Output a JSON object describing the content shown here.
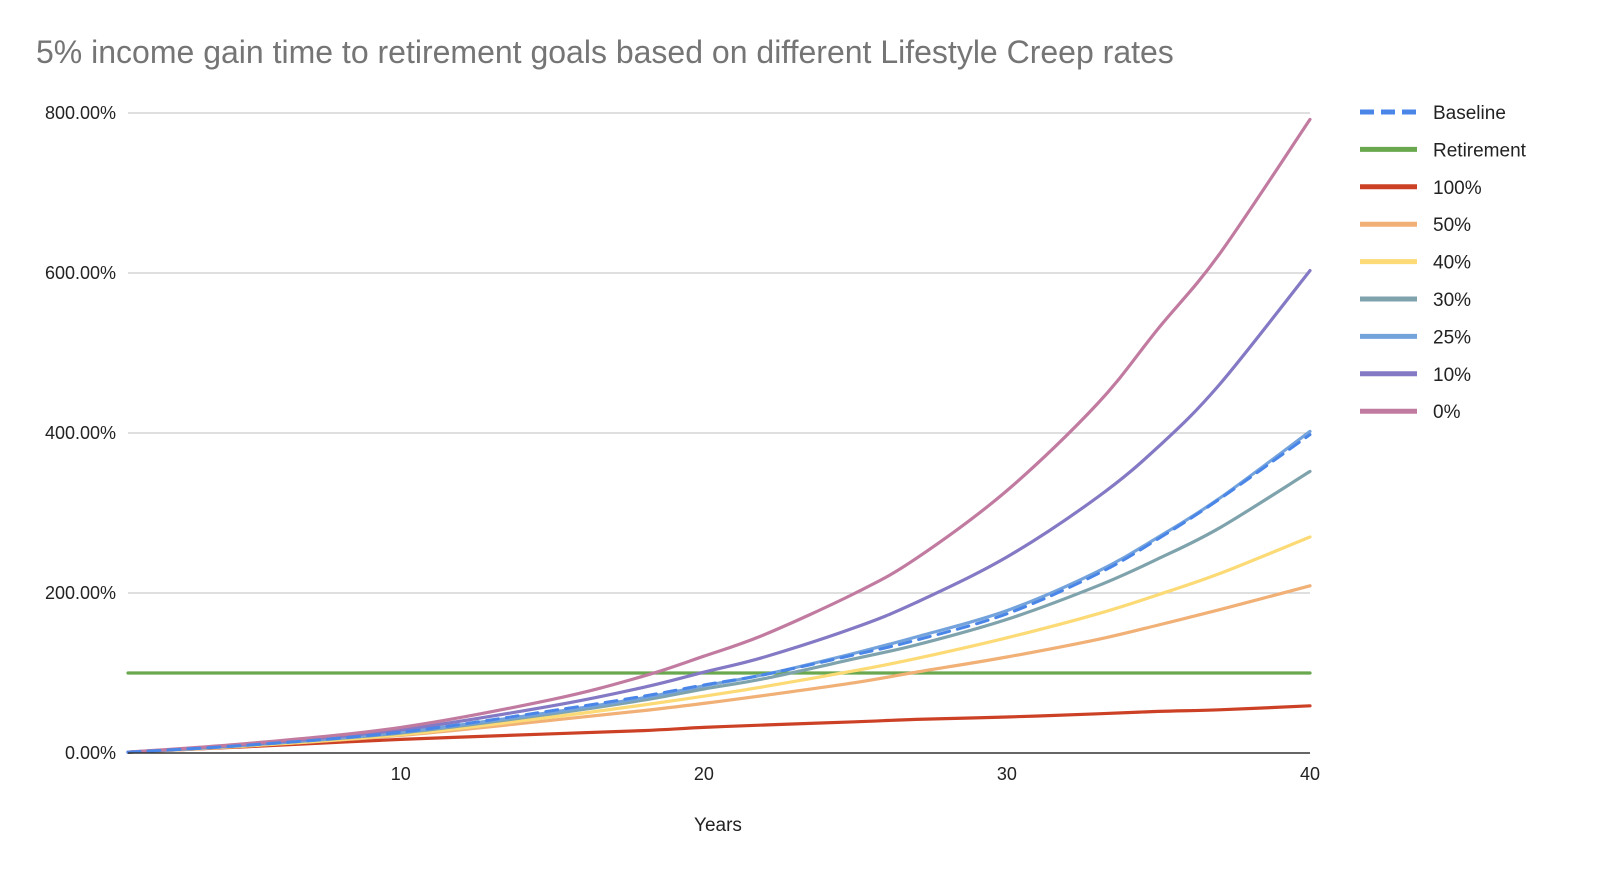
{
  "chart_data": {
    "type": "line",
    "title": "5% income gain time to retirement goals based on different Lifestyle Creep rates",
    "xlabel": "Years",
    "ylabel": "",
    "xlim": [
      1,
      40
    ],
    "ylim": [
      0,
      800
    ],
    "x_ticks": [
      10,
      20,
      30,
      40
    ],
    "y_ticks": [
      0,
      200,
      400,
      600,
      800
    ],
    "y_tick_labels": [
      "0.00%",
      "200.00%",
      "400.00%",
      "600.00%",
      "800.00%"
    ],
    "grid": true,
    "legend_position": "right",
    "x": [
      1,
      5,
      10,
      15,
      18,
      20,
      22,
      25,
      27,
      30,
      33,
      35,
      37,
      40
    ],
    "series": [
      {
        "name": "Baseline",
        "color": "#4a86e8",
        "dashed": true,
        "values": [
          1,
          10,
          26,
          53,
          71,
          85,
          98,
          123,
          141,
          174,
          224,
          268,
          317,
          398
        ]
      },
      {
        "name": "Retirement",
        "color": "#6aa84f",
        "dashed": false,
        "values": [
          100,
          100,
          100,
          100,
          100,
          100,
          100,
          100,
          100,
          100,
          100,
          100,
          100,
          100
        ]
      },
      {
        "name": "100%",
        "color": "#cc4125",
        "dashed": false,
        "values": [
          1,
          8,
          17,
          24,
          28,
          32,
          35,
          39,
          42,
          45,
          49,
          52,
          54,
          59
        ]
      },
      {
        "name": "50%",
        "color": "#f0b076",
        "dashed": false,
        "values": [
          1,
          9,
          22,
          41,
          53,
          62,
          72,
          88,
          101,
          120,
          142,
          160,
          179,
          209
        ]
      },
      {
        "name": "40%",
        "color": "#fcda76",
        "dashed": false,
        "values": [
          1,
          9,
          23,
          45,
          60,
          71,
          83,
          103,
          118,
          144,
          174,
          198,
          224,
          270
        ]
      },
      {
        "name": "30%",
        "color": "#7fa3ac",
        "dashed": false,
        "values": [
          1,
          10,
          25,
          49,
          66,
          80,
          93,
          118,
          135,
          167,
          209,
          243,
          281,
          352
        ]
      },
      {
        "name": "25%",
        "color": "#74a3dc",
        "dashed": false,
        "values": [
          1,
          10,
          26,
          51,
          69,
          84,
          98,
          125,
          145,
          178,
          227,
          270,
          318,
          402
        ]
      },
      {
        "name": "10%",
        "color": "#8379c4",
        "dashed": false,
        "values": [
          1,
          11,
          29,
          59,
          82,
          101,
          120,
          157,
          188,
          245,
          320,
          383,
          460,
          603
        ]
      },
      {
        "name": "0%",
        "color": "#c27ba0",
        "dashed": false,
        "values": [
          1,
          12,
          32,
          67,
          96,
          121,
          148,
          200,
          243,
          328,
          437,
          531,
          623,
          792
        ]
      }
    ]
  }
}
